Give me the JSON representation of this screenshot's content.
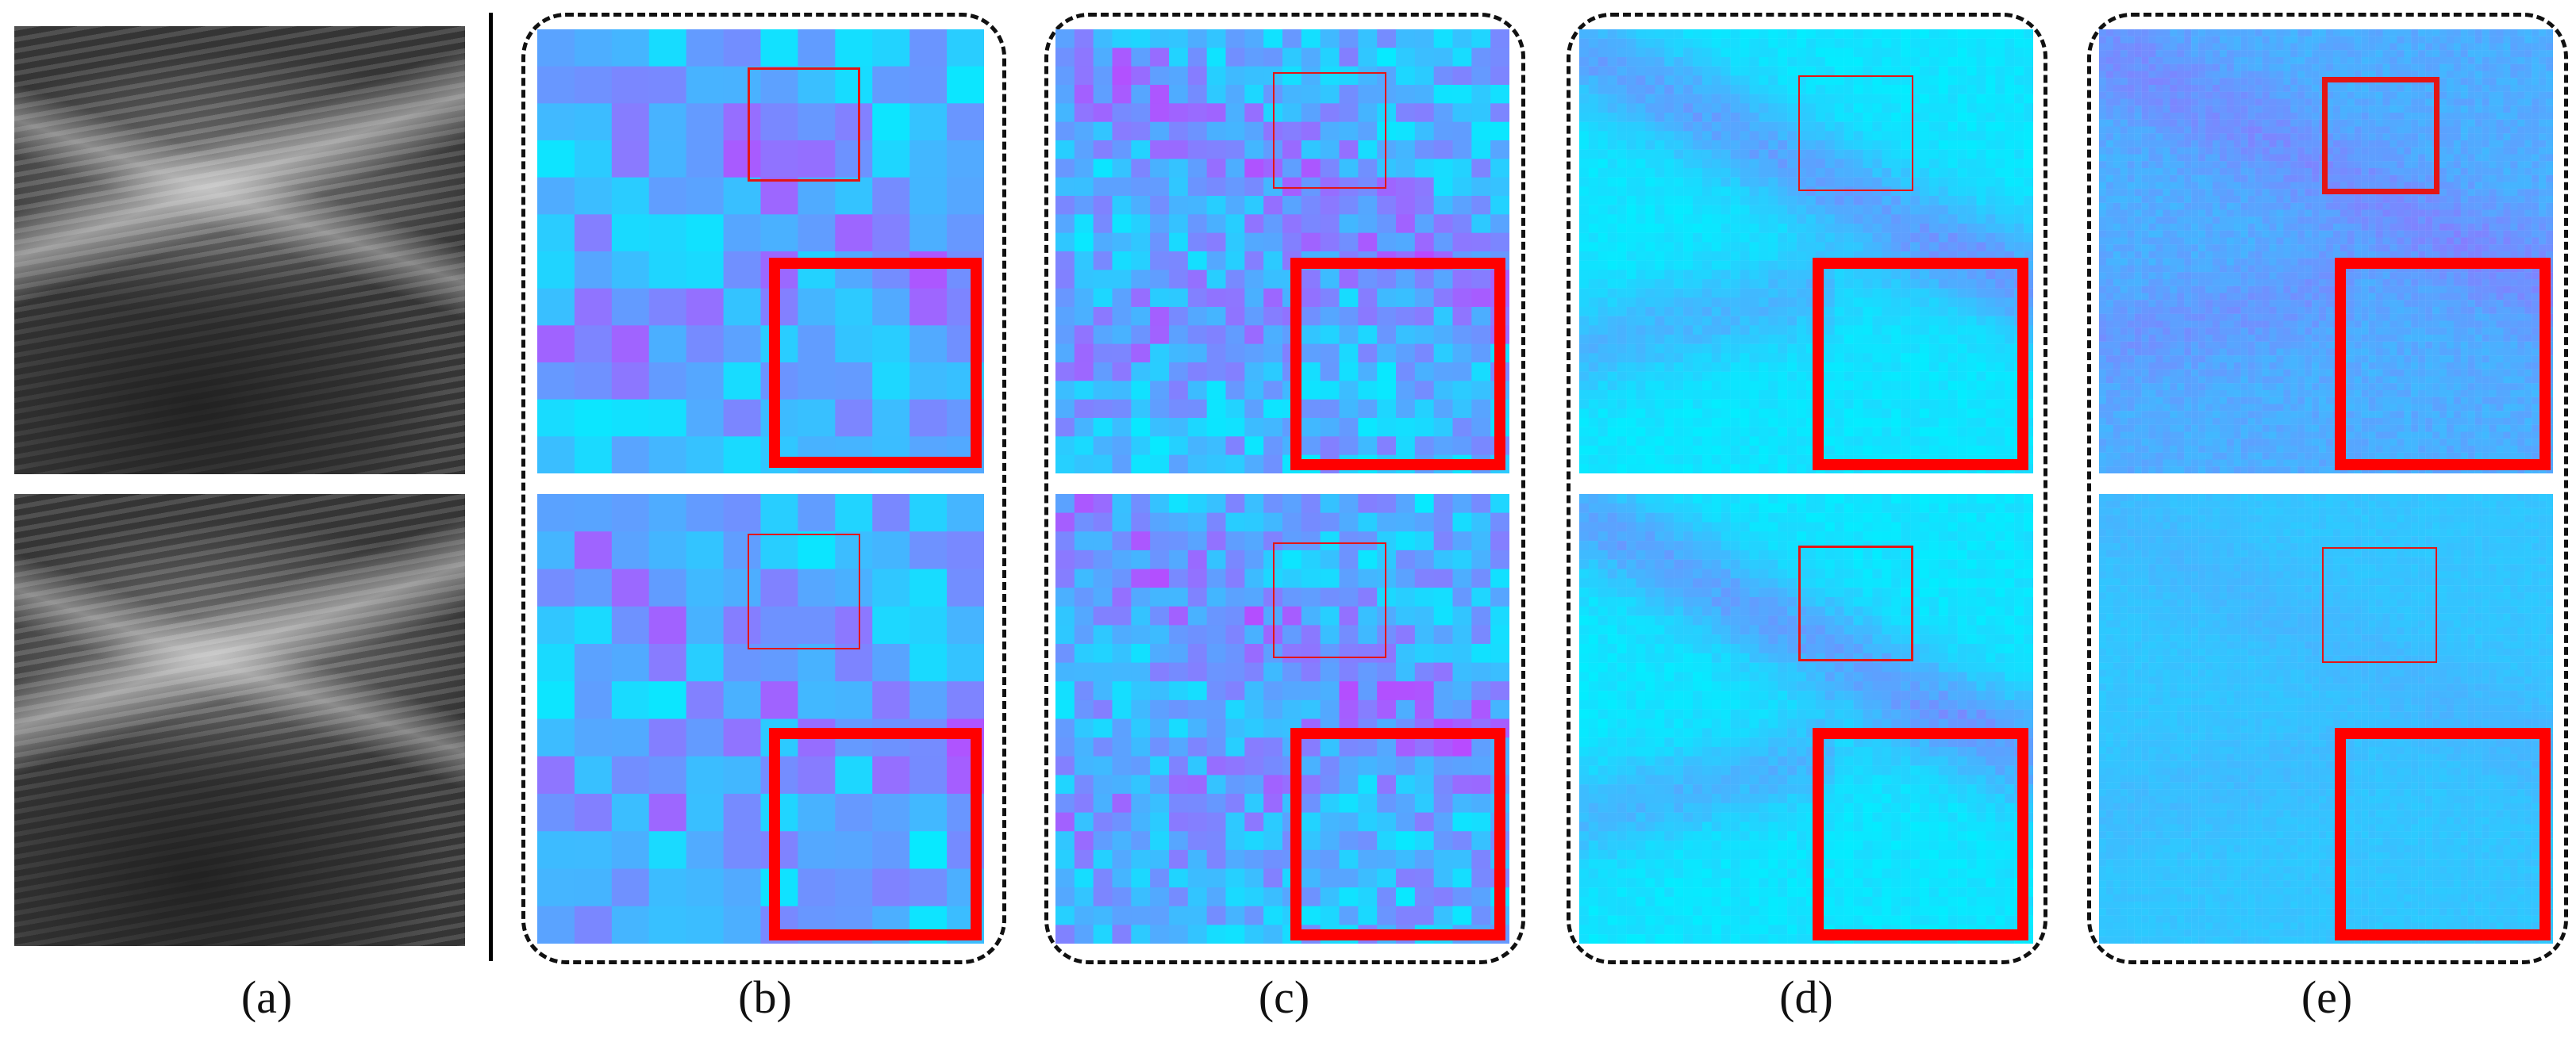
{
  "figure": {
    "panel_captions": [
      "(a)",
      "(b)",
      "(c)",
      "(d)",
      "(e)"
    ]
  },
  "colors": {
    "cyan": "#00f0ff",
    "magenta": "#ff00ff",
    "zoom_box": "#ff0000",
    "dashed_border": "#111111"
  },
  "icons": {
    "grayscale_image": "ultrasound-image",
    "heatmap": "attention-heatmap",
    "zoom_box": "red-zoom-rectangle"
  }
}
